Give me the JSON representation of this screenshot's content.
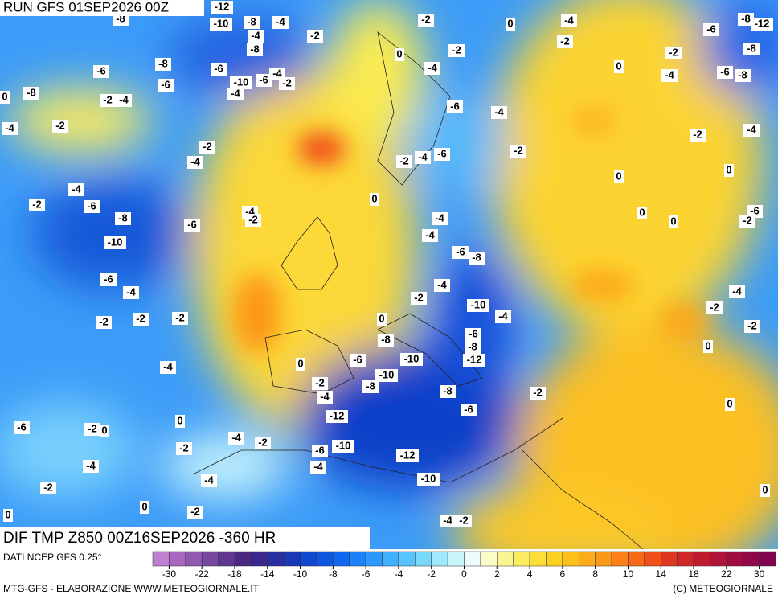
{
  "header": {
    "run": "RUN GFS 01SEP2026 00Z",
    "field": "DIF TMP Z850 00Z16SEP2026 -360 HR"
  },
  "footer": {
    "source": "DATI NCEP GFS 0.25°",
    "credit": "MTG-GFS - ELABORAZIONE WWW.METEOGIORNALE.IT",
    "copyright": "(C) METEOGIORNALE"
  },
  "colorbar": {
    "ticks": [
      -30,
      -22,
      -18,
      -14,
      -10,
      -8,
      -6,
      -4,
      -2,
      0,
      2,
      4,
      6,
      8,
      10,
      14,
      18,
      22,
      30
    ],
    "colors": [
      "#c080d0",
      "#a868c0",
      "#9058b0",
      "#7848a0",
      "#603890",
      "#482880",
      "#382890",
      "#2830a0",
      "#1838b8",
      "#1048d0",
      "#0c58e0",
      "#1068f0",
      "#1c80f8",
      "#2c98fc",
      "#40b0fc",
      "#58c4fc",
      "#78d8fc",
      "#a0e8fc",
      "#c8f4fc",
      "#ecfcfc",
      "#fcfcc8",
      "#fcf490",
      "#fcec60",
      "#fce038",
      "#fcd020",
      "#fcc018",
      "#fcac18",
      "#fc9818",
      "#fc8018",
      "#f86818",
      "#f05018",
      "#e03820",
      "#d02828",
      "#c01c30",
      "#b01438",
      "#a00c40",
      "#900848",
      "#800450"
    ]
  },
  "map_labels": [
    -8,
    -12,
    -10,
    -8,
    -4,
    -4,
    -2,
    -8,
    -2,
    0,
    -4,
    -2,
    -6,
    -8,
    -12,
    -8,
    -8,
    -6,
    -6,
    -6,
    -10,
    -6,
    -2,
    -4,
    -4,
    -8,
    0,
    -2,
    -4,
    -2,
    -4,
    0,
    -2,
    -4,
    0,
    -2,
    -4,
    -6,
    -8,
    -6,
    -4,
    -2,
    -2,
    -4,
    -6,
    -2,
    -4,
    -2,
    -4,
    0,
    -4,
    -2,
    -6,
    -8,
    -6,
    -10,
    -4,
    -2,
    0,
    0,
    0,
    0,
    -6,
    -2,
    -4,
    -4,
    -6,
    -8,
    -6,
    -4,
    -4,
    -2,
    -10,
    -4,
    -4,
    -2,
    -2,
    -2,
    -2,
    -2,
    0,
    -8,
    -6,
    -8,
    -12,
    -6,
    -10,
    0,
    0,
    -4,
    -10,
    -2,
    -8,
    -4,
    -8,
    -2,
    -6,
    0,
    -12,
    0,
    -6,
    -2,
    0,
    -2,
    -4,
    -2,
    -6,
    -10,
    -12,
    -4,
    -4,
    -4,
    -10,
    -2,
    0,
    -2,
    0,
    0,
    -4,
    -2
  ]
}
